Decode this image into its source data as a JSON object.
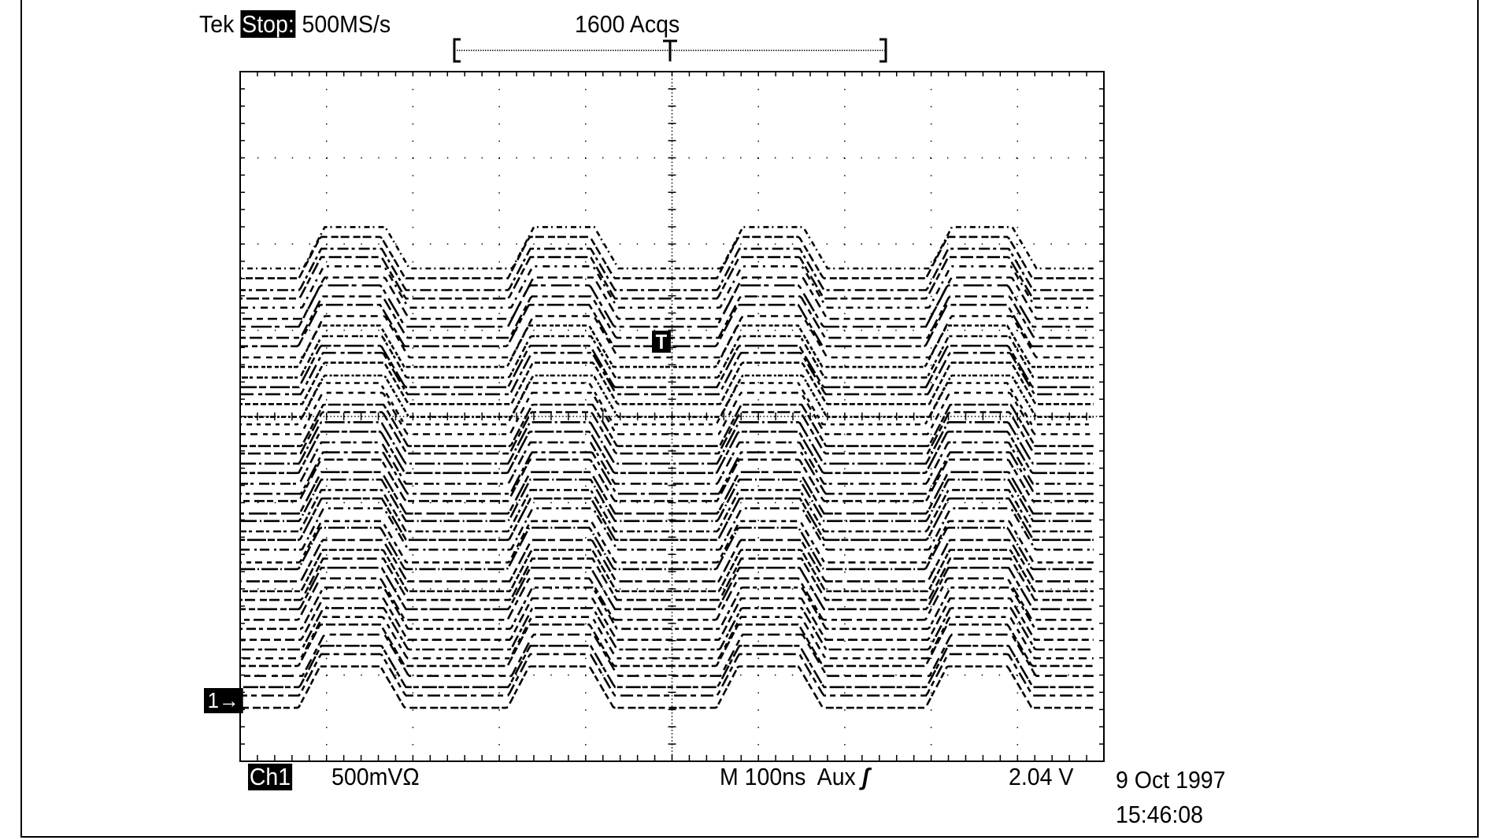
{
  "header": {
    "brand": "Tek",
    "state": "Stop:",
    "sample_rate": "500MS/s",
    "acquisitions": "1600 Acqs",
    "trigger_position_marker": "T"
  },
  "footer": {
    "channel": "Ch1",
    "channel_scale": "500mVΩ",
    "timebase": "M  100ns",
    "trigger_source": "Aux",
    "trigger_slope_icon": "rising-edge-icon",
    "trigger_slope_glyph": "ʃ",
    "trigger_level": "2.04 V",
    "date": "9 Oct 1997",
    "time": "15:46:08"
  },
  "markers": {
    "channel_ground": "1→",
    "trigger_level": "T"
  },
  "chart_data": {
    "type": "line",
    "title": "",
    "xlabel": "",
    "ylabel": "",
    "grid": true,
    "x_unit": "ns",
    "y_unit": "V",
    "xlim": [
      0,
      1000
    ],
    "ylim": [
      -0.35,
      3.65
    ],
    "x_per_div": 100,
    "y_per_div": 0.5,
    "divisions": {
      "horizontal": 10,
      "vertical": 8
    },
    "trigger_level_v": 2.04,
    "trigger_time_ns": 500,
    "waveform": {
      "shape": "trapezoidal pulse train",
      "pulse_rise_start_ns": [
        70,
        312,
        554,
        796
      ],
      "rise_time_ns": 25,
      "high_time_ns": 70,
      "fall_time_ns": 28,
      "amplitude_v": 0.24
    },
    "overlaid_traces": {
      "count": 46,
      "baseline_min_v": -0.03,
      "baseline_max_v": 2.5
    },
    "colors": {
      "trace": "#000000",
      "background": "#ffffff",
      "grid": "#000000"
    }
  }
}
